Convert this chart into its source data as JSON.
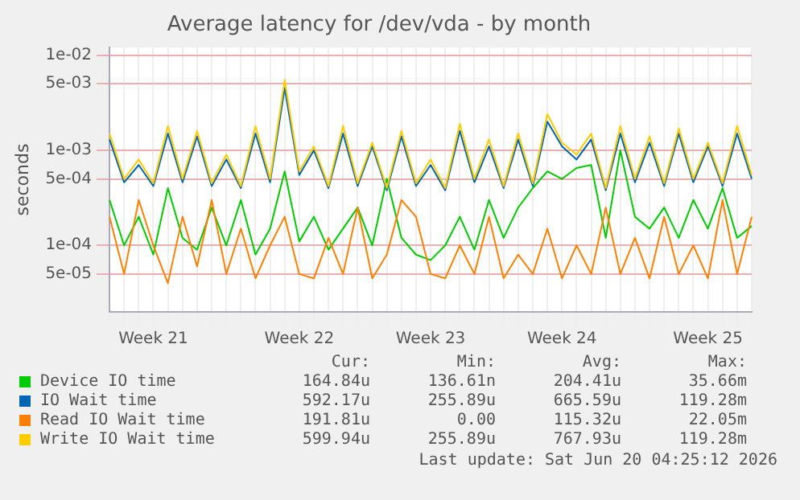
{
  "chart_data": {
    "type": "line",
    "title": "Average latency for /dev/vda - by month",
    "ylabel": "seconds",
    "log": "y",
    "grid": true,
    "legend": "bottom",
    "marker": "none",
    "line_style": "solid",
    "categories": [
      null,
      null,
      null,
      "Week 21",
      null,
      null,
      null,
      null,
      null,
      null,
      null,
      null,
      null,
      "Week 22",
      null,
      null,
      null,
      null,
      null,
      null,
      null,
      null,
      "Week 23",
      null,
      null,
      null,
      null,
      null,
      null,
      null,
      null,
      "Week 24",
      null,
      null,
      null,
      null,
      null,
      null,
      null,
      null,
      null,
      "Week 25",
      null,
      null,
      null
    ],
    "ylim": [
      2e-05,
      0.012
    ],
    "yticks": [
      {
        "value": 5e-05,
        "label": "5e-05"
      },
      {
        "value": 0.0001,
        "label": "1e-04"
      },
      {
        "value": 0.0005,
        "label": "5e-04"
      },
      {
        "value": 0.001,
        "label": "1e-03"
      },
      {
        "value": 0.005,
        "label": "5e-03"
      },
      {
        "value": 0.01,
        "label": "1e-02"
      }
    ],
    "series": [
      {
        "name": "Device IO time",
        "color": "#00cc00",
        "values": [
          0.0003,
          0.0001,
          0.0002,
          8e-05,
          0.0004,
          0.00012,
          9e-05,
          0.00025,
          0.0001,
          0.0003,
          8e-05,
          0.00015,
          0.0006,
          0.00011,
          0.0002,
          9e-05,
          0.00015,
          0.00025,
          0.0001,
          0.0005,
          0.00012,
          8e-05,
          7e-05,
          0.0001,
          0.0002,
          9e-05,
          0.0003,
          0.00012,
          0.00025,
          0.0004,
          0.0006,
          0.0005,
          0.00065,
          0.0007,
          0.00012,
          0.001,
          0.0002,
          0.00015,
          0.00025,
          0.00012,
          0.0003,
          0.00015,
          0.0004,
          0.00012,
          0.00016
        ]
      },
      {
        "name": "IO Wait time",
        "color": "#0066b3",
        "values": [
          0.0013,
          0.00046,
          0.0007,
          0.00042,
          0.0015,
          0.00046,
          0.0014,
          0.00042,
          0.0008,
          0.0004,
          0.0015,
          0.00046,
          0.0045,
          0.00055,
          0.001,
          0.0004,
          0.0015,
          0.00042,
          0.0011,
          0.00038,
          0.0014,
          0.00042,
          0.0007,
          0.00038,
          0.0016,
          0.00046,
          0.0011,
          0.0004,
          0.0013,
          0.00042,
          0.002,
          0.0011,
          0.0008,
          0.0013,
          0.00038,
          0.0015,
          0.00046,
          0.0012,
          0.00042,
          0.0015,
          0.00046,
          0.0011,
          0.00042,
          0.0015,
          0.0005
        ]
      },
      {
        "name": "Read IO Wait time",
        "color": "#ff8000",
        "values": [
          0.0002,
          5e-05,
          0.0003,
          0.0001,
          4e-05,
          0.0002,
          6e-05,
          0.0003,
          5e-05,
          0.00015,
          4.5e-05,
          0.0001,
          0.0002,
          5e-05,
          4.5e-05,
          0.00012,
          5e-05,
          0.00025,
          4.5e-05,
          8e-05,
          0.0003,
          0.0002,
          5e-05,
          4.5e-05,
          0.0001,
          5e-05,
          0.0002,
          4.5e-05,
          8e-05,
          5e-05,
          0.00015,
          4.5e-05,
          0.0001,
          5e-05,
          0.00025,
          5e-05,
          0.00012,
          4.5e-05,
          0.0002,
          5e-05,
          0.0001,
          4.5e-05,
          0.0003,
          5e-05,
          0.0002
        ]
      },
      {
        "name": "Write IO Wait time",
        "color": "#ffcc00",
        "values": [
          0.0015,
          0.0005,
          0.0008,
          0.00045,
          0.0018,
          0.0005,
          0.0016,
          0.00045,
          0.0009,
          0.00042,
          0.0018,
          0.0005,
          0.0055,
          0.0006,
          0.0011,
          0.00042,
          0.0018,
          0.00045,
          0.0012,
          0.0004,
          0.0016,
          0.00045,
          0.0008,
          0.0004,
          0.0019,
          0.0005,
          0.0013,
          0.00042,
          0.0015,
          0.00045,
          0.0024,
          0.0012,
          0.0009,
          0.0015,
          0.0004,
          0.0018,
          0.0005,
          0.0014,
          0.00045,
          0.0017,
          0.0005,
          0.0012,
          0.00045,
          0.0018,
          0.00055
        ]
      }
    ],
    "annotations": [
      "Cur:",
      "Min:",
      "Avg:",
      "Max:",
      "164.84u",
      "136.61n",
      "204.41u",
      "35.66m",
      "592.17u",
      "255.89u",
      "665.59u",
      "119.28m",
      "191.81u",
      "0.00",
      "115.32u",
      "22.05m",
      "599.94u",
      "255.89u",
      "767.93u",
      "119.28m",
      "Last update: Sat Jun 20 04:25:12 2026"
    ]
  }
}
